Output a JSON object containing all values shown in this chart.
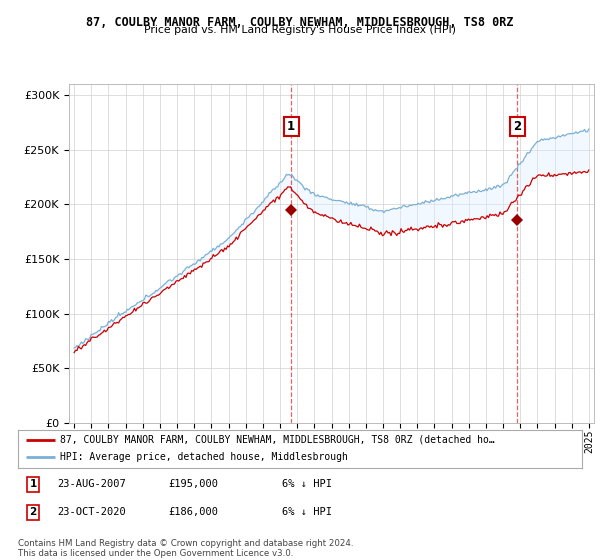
{
  "title": "87, COULBY MANOR FARM, COULBY NEWHAM, MIDDLESBROUGH, TS8 0RZ",
  "subtitle": "Price paid vs. HM Land Registry's House Price Index (HPI)",
  "annotation1": {
    "label": "1",
    "date_x": 2007.65,
    "price": 195000,
    "text": "23-AUG-2007",
    "amount": "£195,000",
    "pct": "6% ↓ HPI"
  },
  "annotation2": {
    "label": "2",
    "date_x": 2020.82,
    "price": 186000,
    "text": "23-OCT-2020",
    "amount": "£186,000",
    "pct": "6% ↓ HPI"
  },
  "legend_line1": "87, COULBY MANOR FARM, COULBY NEWHAM, MIDDLESBROUGH, TS8 0RZ (detached ho…",
  "legend_line2": "HPI: Average price, detached house, Middlesbrough",
  "footer1": "Contains HM Land Registry data © Crown copyright and database right 2024.",
  "footer2": "This data is licensed under the Open Government Licence v3.0.",
  "ylim": [
    0,
    310000
  ],
  "yticks": [
    0,
    50000,
    100000,
    150000,
    200000,
    250000,
    300000
  ],
  "xlim": [
    1994.7,
    2025.3
  ],
  "red_color": "#cc0000",
  "blue_color": "#7ab0d4",
  "fill_color": "#ddeeff",
  "marker_color": "#990000"
}
